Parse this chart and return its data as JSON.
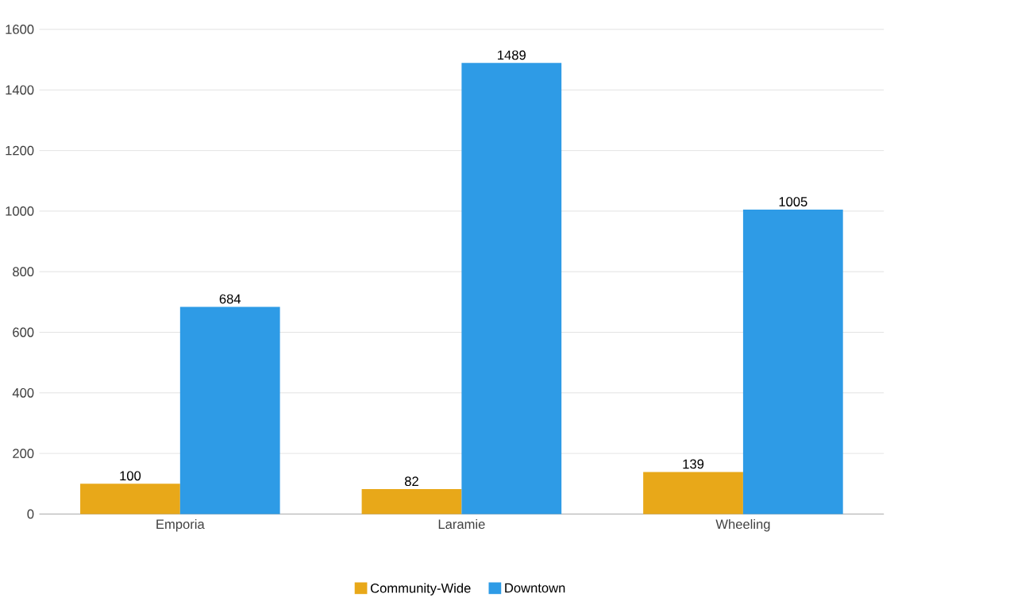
{
  "chart_data": {
    "type": "bar",
    "categories": [
      "Emporia",
      "Laramie",
      "Wheeling"
    ],
    "series": [
      {
        "name": "Community-Wide",
        "color": "#e8a819",
        "values": [
          100,
          82,
          139
        ]
      },
      {
        "name": "Downtown",
        "color": "#2e9be6",
        "values": [
          684,
          1489,
          1005
        ]
      }
    ],
    "ylim": [
      0,
      1600
    ],
    "yticks": [
      0,
      200,
      400,
      600,
      800,
      1000,
      1200,
      1400,
      1600
    ],
    "grid": "y",
    "legend": "bottom",
    "data_labels": true
  }
}
